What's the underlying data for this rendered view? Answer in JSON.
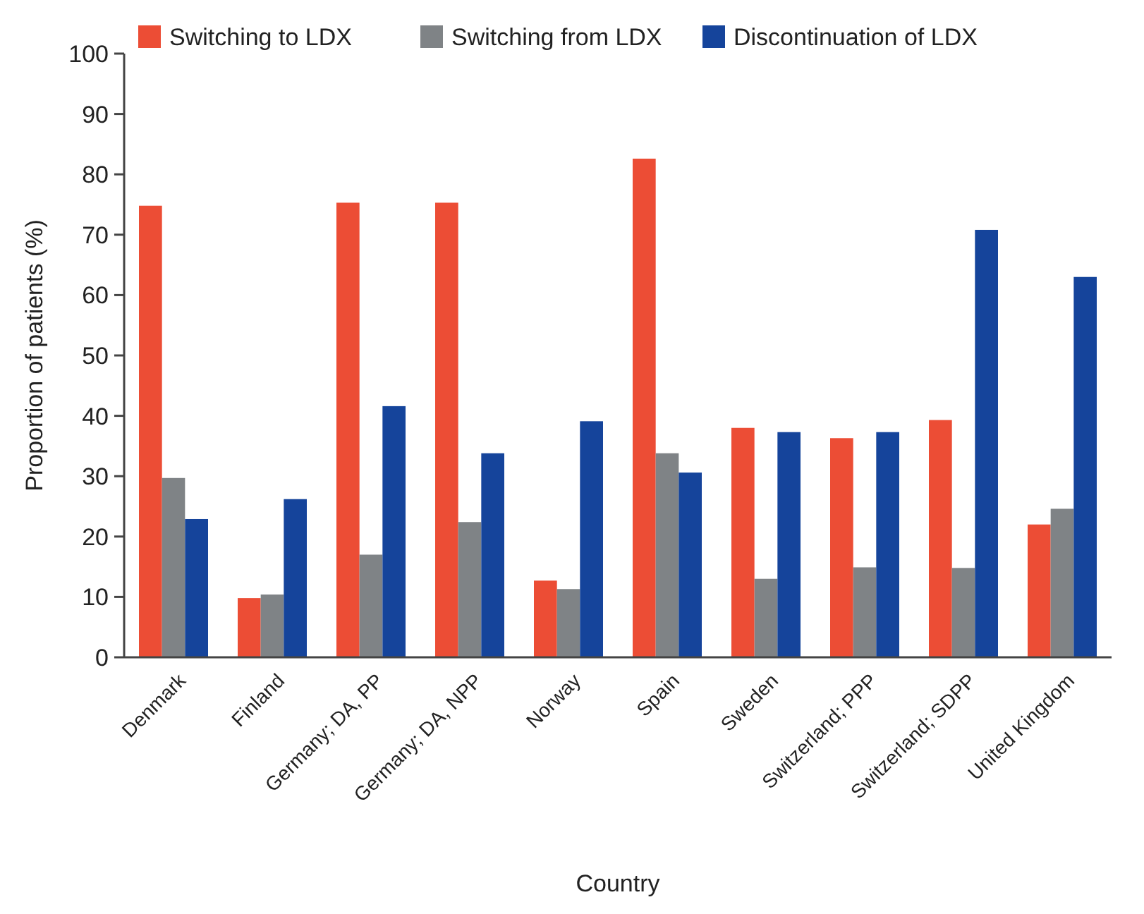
{
  "chart_data": {
    "type": "bar",
    "xlabel": "Country",
    "ylabel": "Proportion of patients (%)",
    "categories": [
      "Denmark",
      "Finland",
      "Germany; DA, PP",
      "Germany; DA, NPP",
      "Norway",
      "Spain",
      "Sweden",
      "Switzerland; PPP",
      "Switzerland; SDPP",
      "United Kingdom"
    ],
    "series": [
      {
        "name": "Switching to LDX",
        "color": "#ec4d35",
        "values": [
          74.8,
          9.8,
          75.3,
          75.3,
          12.7,
          82.6,
          38.0,
          36.3,
          39.3,
          22.0
        ]
      },
      {
        "name": "Switching from LDX",
        "color": "#7f8386",
        "values": [
          29.7,
          10.4,
          17.0,
          22.4,
          11.3,
          33.8,
          13.0,
          14.9,
          14.8,
          24.6
        ]
      },
      {
        "name": "Discontinuation of LDX",
        "color": "#15449b",
        "values": [
          22.9,
          26.2,
          41.6,
          33.8,
          39.1,
          30.6,
          37.3,
          37.3,
          70.8,
          63.0
        ]
      }
    ],
    "ylim": [
      0,
      100
    ],
    "yticks": [
      0,
      10,
      20,
      30,
      40,
      50,
      60,
      70,
      80,
      90,
      100
    ],
    "grid": false,
    "legend": "top"
  }
}
